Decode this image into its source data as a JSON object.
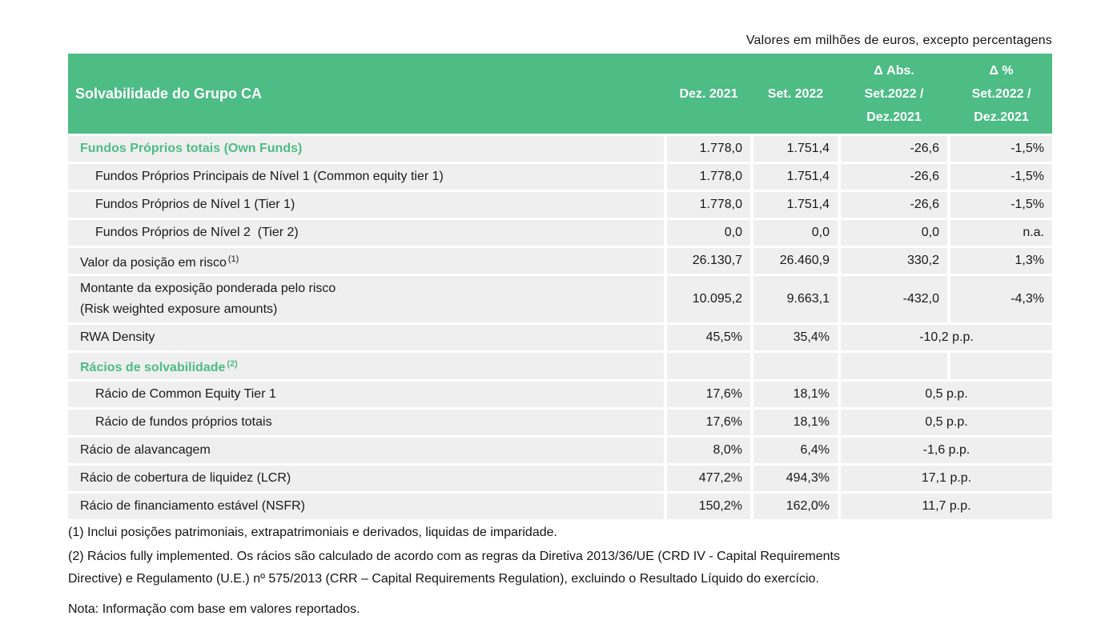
{
  "top_note": "Valores em milhões de euros, excepto percentagens",
  "colors": {
    "header_green": "#4dbc85",
    "row_gray": "#efefef",
    "text": "#1a1a1a",
    "header_text": "#ffffff"
  },
  "table": {
    "title": "Solvabilidade do Grupo CA",
    "columns": [
      {
        "lines": [
          "Dez. 2021"
        ]
      },
      {
        "lines": [
          "Set. 2022"
        ]
      },
      {
        "lines": [
          "Δ Abs.",
          "Set.2022 /",
          "Dez.2021"
        ]
      },
      {
        "lines": [
          "Δ %",
          "Set.2022 /",
          "Dez.2021"
        ]
      }
    ],
    "rows": [
      {
        "label": "Fundos Próprios totais (Own Funds)",
        "style": "group",
        "values": [
          "1.778,0",
          "1.751,4",
          "-26,6",
          "-1,5%"
        ]
      },
      {
        "label": "Fundos Próprios Principais de Nível 1 (Common equity tier 1)",
        "style": "indent",
        "values": [
          "1.778,0",
          "1.751,4",
          "-26,6",
          "-1,5%"
        ]
      },
      {
        "label": "Fundos Próprios de Nível 1 (Tier 1)",
        "style": "indent",
        "values": [
          "1.778,0",
          "1.751,4",
          "-26,6",
          "-1,5%"
        ]
      },
      {
        "label": "Fundos Próprios de Nível 2  (Tier 2)",
        "style": "indent",
        "values": [
          "0,0",
          "0,0",
          "0,0",
          "n.a."
        ]
      },
      {
        "label": "Valor da posição em risco",
        "sup": "(1)",
        "style": "normal",
        "values": [
          "26.130,7",
          "26.460,9",
          "330,2",
          "1,3%"
        ]
      },
      {
        "label": "Montante da exposição ponderada pelo risco",
        "label2": "(Risk weighted exposure amounts)",
        "style": "normal",
        "tall": true,
        "values": [
          "10.095,2",
          "9.663,1",
          "-432,0",
          "-4,3%"
        ]
      },
      {
        "label": "RWA Density",
        "style": "normal",
        "merged": true,
        "values": [
          "45,5%",
          "35,4%",
          "-10,2 p.p."
        ]
      },
      {
        "label": "Rácios de solvabilidade",
        "sup": "(2)",
        "style": "group",
        "short": true,
        "values": [
          "",
          "",
          "",
          ""
        ]
      },
      {
        "label": "Rácio de Common Equity Tier 1",
        "style": "indent",
        "merged": true,
        "values": [
          "17,6%",
          "18,1%",
          "0,5 p.p."
        ]
      },
      {
        "label": "Rácio de fundos próprios totais",
        "style": "indent",
        "merged": true,
        "values": [
          "17,6%",
          "18,1%",
          "0,5 p.p."
        ]
      },
      {
        "label": "Rácio de alavancagem",
        "style": "normal",
        "merged": true,
        "values": [
          "8,0%",
          "6,4%",
          "-1,6 p.p."
        ]
      },
      {
        "label": "Rácio de cobertura de liquidez (LCR)",
        "style": "normal",
        "merged": true,
        "values": [
          "477,2%",
          "494,3%",
          "17,1 p.p."
        ]
      },
      {
        "label": "Rácio de financiamento estável (NSFR)",
        "style": "normal",
        "merged": true,
        "values": [
          "150,2%",
          "162,0%",
          "11,7 p.p."
        ]
      }
    ]
  },
  "footnotes": {
    "f1": "(1)  Inclui posições patrimoniais, extrapatrimoniais e derivados, liquidas de imparidade.",
    "f2_line1": "(2) Rácios fully implemented. Os rácios são calculado de acordo com as regras da Diretiva 2013/36/UE  (CRD IV - Capital Requirements",
    "f2_line2": "Directive) e Regulamento (U.E.) nº 575/2013 (CRR – Capital Requirements Regulation),  excluindo o Resultado Líquido do exercício.",
    "nota": "Nota: Informação com base em valores reportados."
  }
}
